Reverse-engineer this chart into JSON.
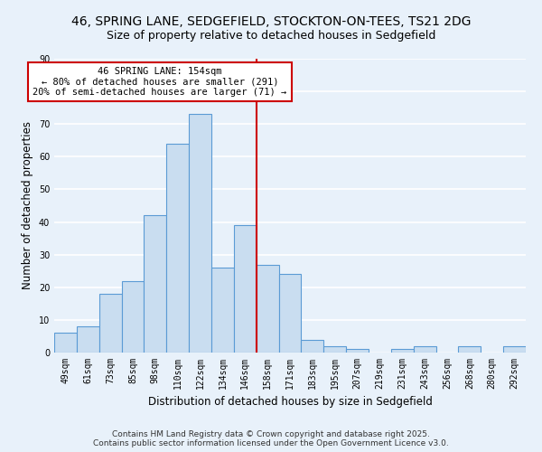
{
  "title": "46, SPRING LANE, SEDGEFIELD, STOCKTON-ON-TEES, TS21 2DG",
  "subtitle": "Size of property relative to detached houses in Sedgefield",
  "xlabel": "Distribution of detached houses by size in Sedgefield",
  "ylabel": "Number of detached properties",
  "bar_labels": [
    "49sqm",
    "61sqm",
    "73sqm",
    "85sqm",
    "98sqm",
    "110sqm",
    "122sqm",
    "134sqm",
    "146sqm",
    "158sqm",
    "171sqm",
    "183sqm",
    "195sqm",
    "207sqm",
    "219sqm",
    "231sqm",
    "243sqm",
    "256sqm",
    "268sqm",
    "280sqm",
    "292sqm"
  ],
  "bar_values": [
    6,
    8,
    18,
    22,
    42,
    64,
    73,
    26,
    39,
    27,
    24,
    4,
    2,
    1,
    0,
    1,
    2,
    0,
    2,
    0,
    2
  ],
  "bar_color": "#c9ddf0",
  "bar_edge_color": "#5b9bd5",
  "vline_x_index": 8.5,
  "vline_color": "#cc0000",
  "annotation_title": "46 SPRING LANE: 154sqm",
  "annotation_line1": "← 80% of detached houses are smaller (291)",
  "annotation_line2": "20% of semi-detached houses are larger (71) →",
  "annotation_box_color": "#ffffff",
  "annotation_box_edge_color": "#cc0000",
  "ylim": [
    0,
    90
  ],
  "yticks": [
    0,
    10,
    20,
    30,
    40,
    50,
    60,
    70,
    80,
    90
  ],
  "footer_line1": "Contains HM Land Registry data © Crown copyright and database right 2025.",
  "footer_line2": "Contains public sector information licensed under the Open Government Licence v3.0.",
  "bg_color": "#e8f1fa",
  "plot_bg_color": "#e8f1fa",
  "grid_color": "#ffffff",
  "title_fontsize": 10,
  "subtitle_fontsize": 9,
  "axis_label_fontsize": 8.5,
  "tick_fontsize": 7,
  "footer_fontsize": 6.5,
  "annotation_fontsize": 7.5
}
